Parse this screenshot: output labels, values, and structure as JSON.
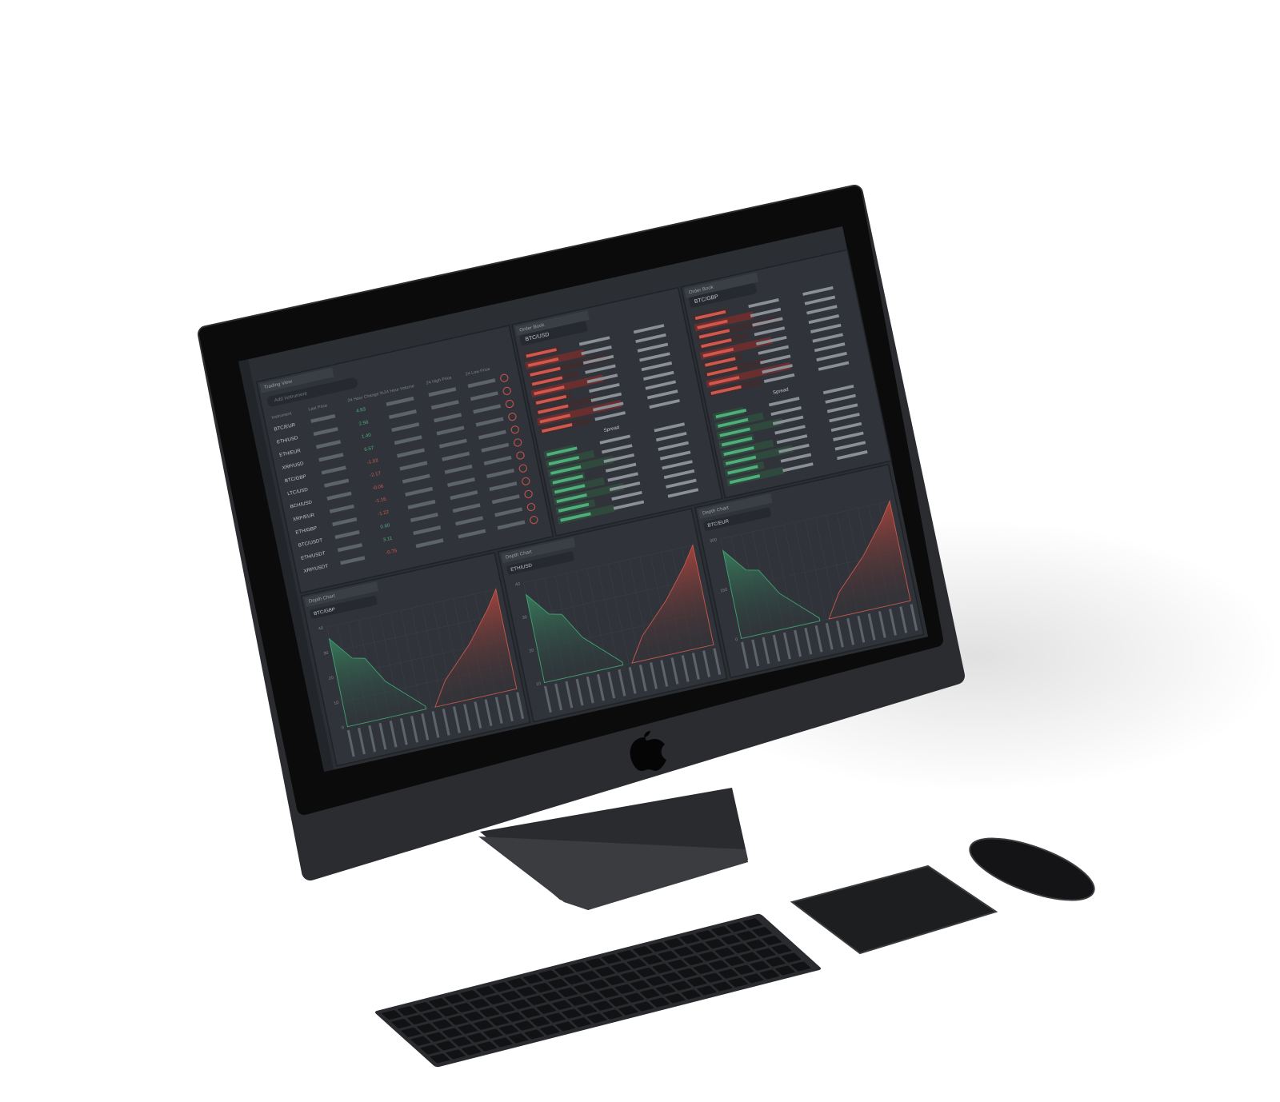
{
  "watchlist": {
    "tab": "Trading View",
    "search": "Add instrument",
    "columns": [
      "Instrument",
      "Last Price",
      "24 Hour Change %",
      "24 Hour Volume",
      "24 High Price",
      "24 Low Price"
    ],
    "rows": [
      [
        "BTC/EUR",
        "4.83"
      ],
      [
        "ETH/USD",
        "2.56"
      ],
      [
        "ETH/EUR",
        "1.40"
      ],
      [
        "XRP/USD",
        "6.57"
      ],
      [
        "BTC/GBP",
        "-1.03"
      ],
      [
        "LTC/USD",
        "-2.17"
      ],
      [
        "BCH/USD",
        "-0.06"
      ],
      [
        "XRP/EUR",
        "-1.16"
      ],
      [
        "ETH/GBP",
        "-1.22"
      ],
      [
        "BTC/USDT",
        "0.60"
      ],
      [
        "ETH/USDT",
        "3.11"
      ],
      [
        "XRP/USDT",
        "-0.75"
      ]
    ]
  },
  "order_books": [
    {
      "tab": "Order Book",
      "pair": "BTC/USD",
      "spread": "Spread"
    },
    {
      "tab": "Order Book",
      "pair": "BTC/GBP",
      "spread": "Spread"
    }
  ],
  "depth_charts": [
    {
      "tab": "Depth Chart",
      "pair": "BTC/GBP",
      "yticks": [
        "40",
        "30",
        "20",
        "10",
        "0"
      ]
    },
    {
      "tab": "Depth Chart",
      "pair": "ETH/USD",
      "yticks": [
        "40",
        "30",
        "20",
        "10"
      ]
    },
    {
      "tab": "Depth Chart",
      "pair": "BTC/EUR",
      "yticks": [
        "300",
        "150",
        "0"
      ]
    }
  ]
}
